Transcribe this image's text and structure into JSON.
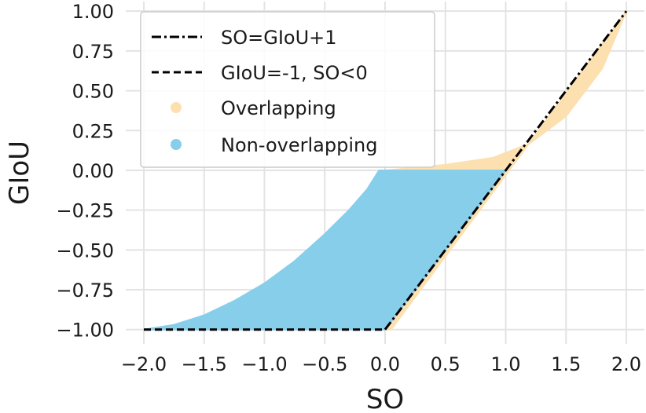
{
  "chart_data": {
    "type": "scatter",
    "xlabel": "SO",
    "ylabel": "GIoU",
    "xlim": [
      -2.15,
      2.15
    ],
    "ylim": [
      -1.09,
      1.06
    ],
    "xticks": [
      -2.0,
      -1.5,
      -1.0,
      -0.5,
      0.0,
      0.5,
      1.0,
      1.5,
      2.0
    ],
    "xtick_labels": [
      "−2.0",
      "−1.5",
      "−1.0",
      "−0.5",
      "0.0",
      "0.5",
      "1.0",
      "1.5",
      "2.0"
    ],
    "yticks": [
      1.0,
      0.75,
      0.5,
      0.25,
      0.0,
      -0.25,
      -0.5,
      -0.75,
      -1.0
    ],
    "ytick_labels": [
      "1.00",
      "0.75",
      "0.50",
      "0.25",
      "0.00",
      "−0.25",
      "−0.50",
      "−0.75",
      "−1.00"
    ],
    "grid": true,
    "legend_position": "top-left",
    "series": [
      {
        "name": "SO=GIoU+1",
        "kind": "line",
        "style": "dashdot",
        "color": "#000000",
        "x": [
          0.0,
          2.0
        ],
        "y": [
          -1.0,
          1.0
        ]
      },
      {
        "name": "GIoU=-1, SO<0",
        "kind": "line",
        "style": "dashed",
        "color": "#000000",
        "x": [
          -2.0,
          0.0
        ],
        "y": [
          -1.0,
          -1.0
        ]
      },
      {
        "name": "Overlapping",
        "kind": "scatter-region",
        "color": "#fde0b0",
        "boundary": [
          {
            "x": 0.0,
            "y": -1.0
          },
          {
            "x": 0.05,
            "y": -1.0
          },
          {
            "x": 1.0,
            "y": -0.03
          },
          {
            "x": 2.0,
            "y": 1.0
          },
          {
            "x": 1.8,
            "y": 0.64
          },
          {
            "x": 1.5,
            "y": 0.34
          },
          {
            "x": 1.2,
            "y": 0.17
          },
          {
            "x": 0.9,
            "y": 0.08
          },
          {
            "x": 0.5,
            "y": 0.035
          },
          {
            "x": 0.0,
            "y": 0.0
          },
          {
            "x": -0.03,
            "y": 0.0
          }
        ]
      },
      {
        "name": "Non-overlapping",
        "kind": "scatter-region",
        "color": "#87ceeb",
        "boundary": [
          {
            "x": -2.0,
            "y": -1.0
          },
          {
            "x": -1.75,
            "y": -0.97
          },
          {
            "x": -1.5,
            "y": -0.91
          },
          {
            "x": -1.25,
            "y": -0.82
          },
          {
            "x": -1.0,
            "y": -0.71
          },
          {
            "x": -0.75,
            "y": -0.57
          },
          {
            "x": -0.5,
            "y": -0.4
          },
          {
            "x": -0.3,
            "y": -0.25
          },
          {
            "x": -0.15,
            "y": -0.12
          },
          {
            "x": -0.05,
            "y": 0.0
          },
          {
            "x": 1.0,
            "y": 0.0
          },
          {
            "x": 0.0,
            "y": -1.0
          }
        ]
      }
    ]
  }
}
